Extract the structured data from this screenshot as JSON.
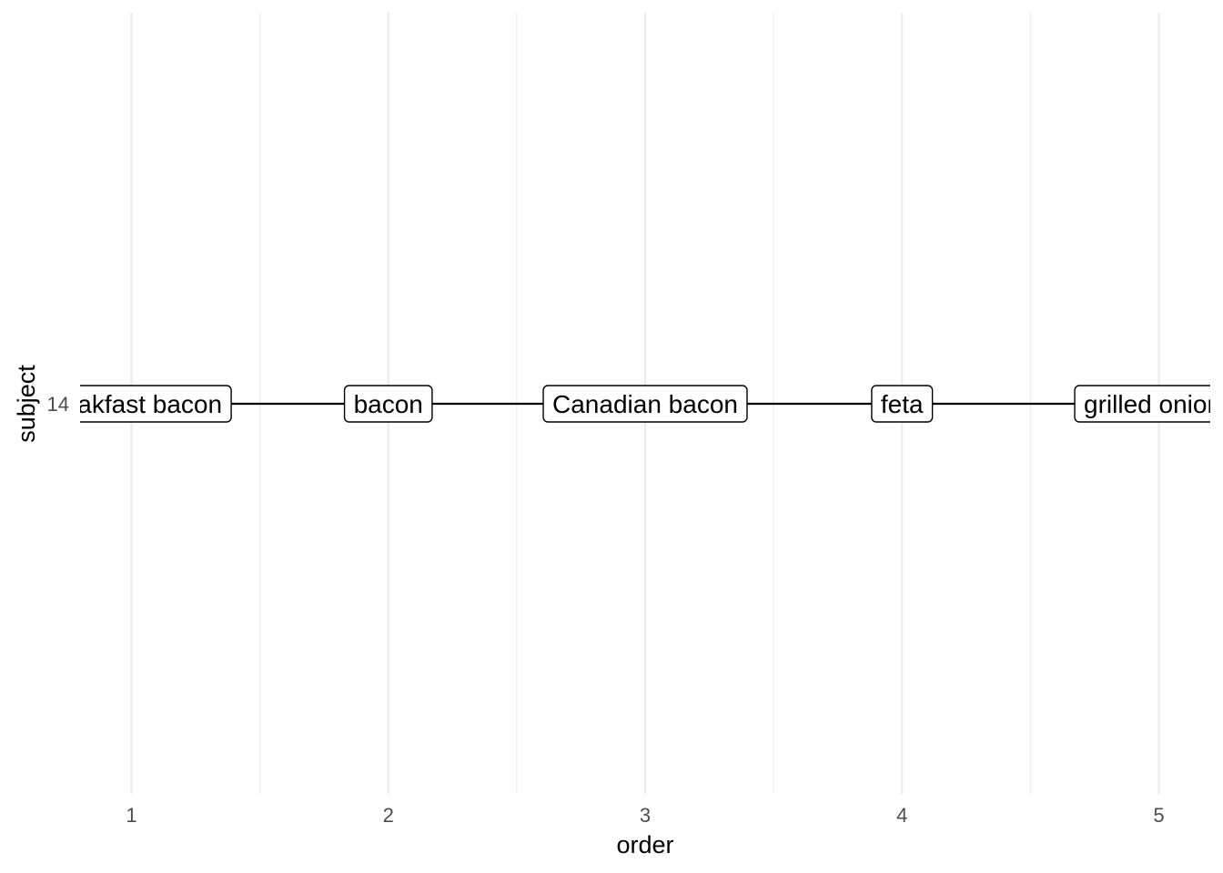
{
  "chart_data": {
    "type": "line",
    "xlabel": "order",
    "ylabel": "subject",
    "x_ticks": [
      "1",
      "2",
      "3",
      "4",
      "5"
    ],
    "y_ticks": [
      "14"
    ],
    "xlim": [
      0.8,
      5.2
    ],
    "grid": true,
    "legend": "none",
    "series": [
      {
        "subject": "14",
        "points": [
          {
            "x": 1,
            "label": "breakfast bacon"
          },
          {
            "x": 2,
            "label": "bacon"
          },
          {
            "x": 3,
            "label": "Canadian bacon"
          },
          {
            "x": 4,
            "label": "feta"
          },
          {
            "x": 5,
            "label": "grilled onions"
          }
        ]
      }
    ]
  }
}
